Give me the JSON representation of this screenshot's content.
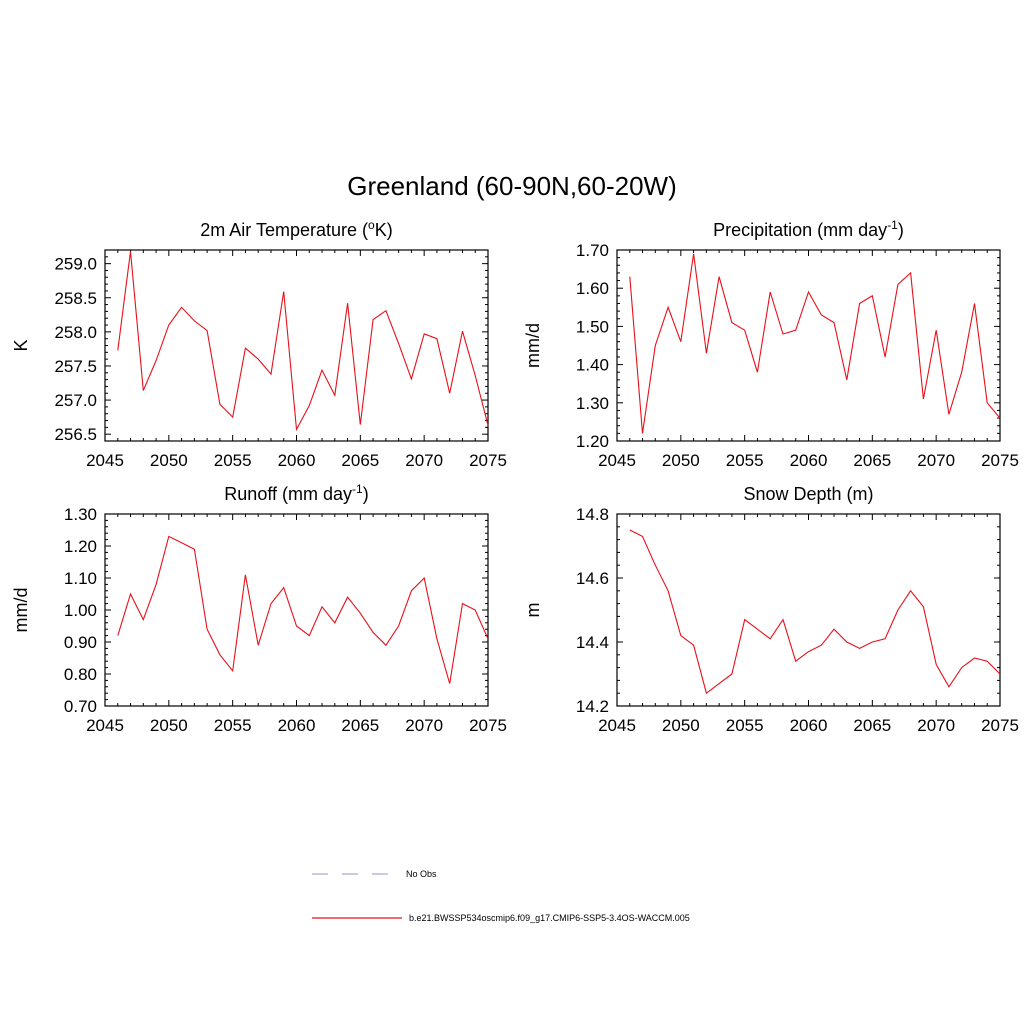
{
  "figure": {
    "title": "Greenland (60-90N,60-20W)",
    "line_color": "#e8101a",
    "obs_color": "#a9a9d8"
  },
  "legend": [
    {
      "label": "No Obs",
      "style": "dashed",
      "color": "#a9a9d8"
    },
    {
      "label": "b.e21.BWSSP534oscmip6.f09_g17.CMIP6-SSP5-3.4OS-WACCM.005",
      "style": "solid",
      "color": "#e8101a"
    }
  ],
  "chart_data": [
    {
      "type": "line",
      "title": "2m Air Temperature (",
      "title_sup": "o",
      "title_after": "K)",
      "ylabel": "K",
      "xlabel": "",
      "xlim": [
        2045,
        2075
      ],
      "ylim": [
        256.4,
        259.2
      ],
      "xticks": [
        2045,
        2050,
        2055,
        2060,
        2065,
        2070,
        2075
      ],
      "yticks": [
        256.5,
        257.0,
        257.5,
        258.0,
        258.5,
        259.0
      ],
      "ytick_labels": [
        "256.5",
        "257.0",
        "257.5",
        "258.0",
        "258.5",
        "259.0"
      ],
      "series": [
        {
          "x": [
            2046,
            2047,
            2048,
            2049,
            2050,
            2051,
            2052,
            2053,
            2054,
            2055,
            2056,
            2057,
            2058,
            2059,
            2060,
            2061,
            2062,
            2063,
            2064,
            2065,
            2066,
            2067,
            2068,
            2069,
            2070,
            2071,
            2072,
            2073,
            2074,
            2075
          ],
          "y": [
            257.73,
            259.18,
            257.14,
            257.58,
            258.1,
            258.36,
            258.16,
            258.02,
            256.94,
            256.75,
            257.76,
            257.6,
            257.38,
            258.59,
            256.57,
            256.92,
            257.44,
            257.07,
            258.42,
            256.64,
            258.18,
            258.31,
            257.83,
            257.31,
            257.97,
            257.9,
            257.1,
            258.01,
            257.36,
            256.63
          ]
        }
      ]
    },
    {
      "type": "line",
      "title": "Precipitation (mm day",
      "title_sup": "-1",
      "title_after": ")",
      "ylabel": "mm/d",
      "xlabel": "",
      "xlim": [
        2045,
        2075
      ],
      "ylim": [
        1.2,
        1.7
      ],
      "xticks": [
        2045,
        2050,
        2055,
        2060,
        2065,
        2070,
        2075
      ],
      "yticks": [
        1.2,
        1.3,
        1.4,
        1.5,
        1.6,
        1.7
      ],
      "ytick_labels": [
        "1.20",
        "1.30",
        "1.40",
        "1.50",
        "1.60",
        "1.70"
      ],
      "series": [
        {
          "x": [
            2046,
            2047,
            2048,
            2049,
            2050,
            2051,
            2052,
            2053,
            2054,
            2055,
            2056,
            2057,
            2058,
            2059,
            2060,
            2061,
            2062,
            2063,
            2064,
            2065,
            2066,
            2067,
            2068,
            2069,
            2070,
            2071,
            2072,
            2073,
            2074,
            2075
          ],
          "y": [
            1.63,
            1.22,
            1.45,
            1.55,
            1.46,
            1.69,
            1.43,
            1.63,
            1.51,
            1.49,
            1.38,
            1.59,
            1.48,
            1.49,
            1.59,
            1.53,
            1.51,
            1.36,
            1.56,
            1.58,
            1.42,
            1.61,
            1.64,
            1.31,
            1.49,
            1.27,
            1.38,
            1.56,
            1.3,
            1.26
          ]
        }
      ]
    },
    {
      "type": "line",
      "title": "Runoff (mm day",
      "title_sup": "-1",
      "title_after": ")",
      "ylabel": "mm/d",
      "xlabel": "",
      "xlim": [
        2045,
        2075
      ],
      "ylim": [
        0.7,
        1.3
      ],
      "xticks": [
        2045,
        2050,
        2055,
        2060,
        2065,
        2070,
        2075
      ],
      "yticks": [
        0.7,
        0.8,
        0.9,
        1.0,
        1.1,
        1.2,
        1.3
      ],
      "ytick_labels": [
        "0.70",
        "0.80",
        "0.90",
        "1.00",
        "1.10",
        "1.20",
        "1.30"
      ],
      "series": [
        {
          "x": [
            2046,
            2047,
            2048,
            2049,
            2050,
            2051,
            2052,
            2053,
            2054,
            2055,
            2056,
            2057,
            2058,
            2059,
            2060,
            2061,
            2062,
            2063,
            2064,
            2065,
            2066,
            2067,
            2068,
            2069,
            2070,
            2071,
            2072,
            2073,
            2074,
            2075
          ],
          "y": [
            0.92,
            1.05,
            0.97,
            1.08,
            1.23,
            1.21,
            1.19,
            0.94,
            0.86,
            0.81,
            1.11,
            0.89,
            1.02,
            1.07,
            0.95,
            0.92,
            1.01,
            0.96,
            1.04,
            0.99,
            0.93,
            0.89,
            0.95,
            1.06,
            1.1,
            0.91,
            0.77,
            1.02,
            1.0,
            0.91
          ]
        }
      ]
    },
    {
      "type": "line",
      "title": "Snow Depth (m)",
      "title_sup": "",
      "title_after": "",
      "ylabel": "m",
      "xlabel": "",
      "xlim": [
        2045,
        2075
      ],
      "ylim": [
        14.2,
        14.8
      ],
      "xticks": [
        2045,
        2050,
        2055,
        2060,
        2065,
        2070,
        2075
      ],
      "yticks": [
        14.2,
        14.4,
        14.6,
        14.8
      ],
      "ytick_labels": [
        "14.2",
        "14.4",
        "14.6",
        "14.8"
      ],
      "series": [
        {
          "x": [
            2046,
            2047,
            2048,
            2049,
            2050,
            2051,
            2052,
            2053,
            2054,
            2055,
            2056,
            2057,
            2058,
            2059,
            2060,
            2061,
            2062,
            2063,
            2064,
            2065,
            2066,
            2067,
            2068,
            2069,
            2070,
            2071,
            2072,
            2073,
            2074,
            2075
          ],
          "y": [
            14.75,
            14.73,
            14.64,
            14.56,
            14.42,
            14.39,
            14.24,
            14.27,
            14.3,
            14.47,
            14.44,
            14.41,
            14.47,
            14.34,
            14.37,
            14.39,
            14.44,
            14.4,
            14.38,
            14.4,
            14.41,
            14.5,
            14.56,
            14.51,
            14.33,
            14.26,
            14.32,
            14.35,
            14.34,
            14.3
          ]
        }
      ]
    }
  ]
}
